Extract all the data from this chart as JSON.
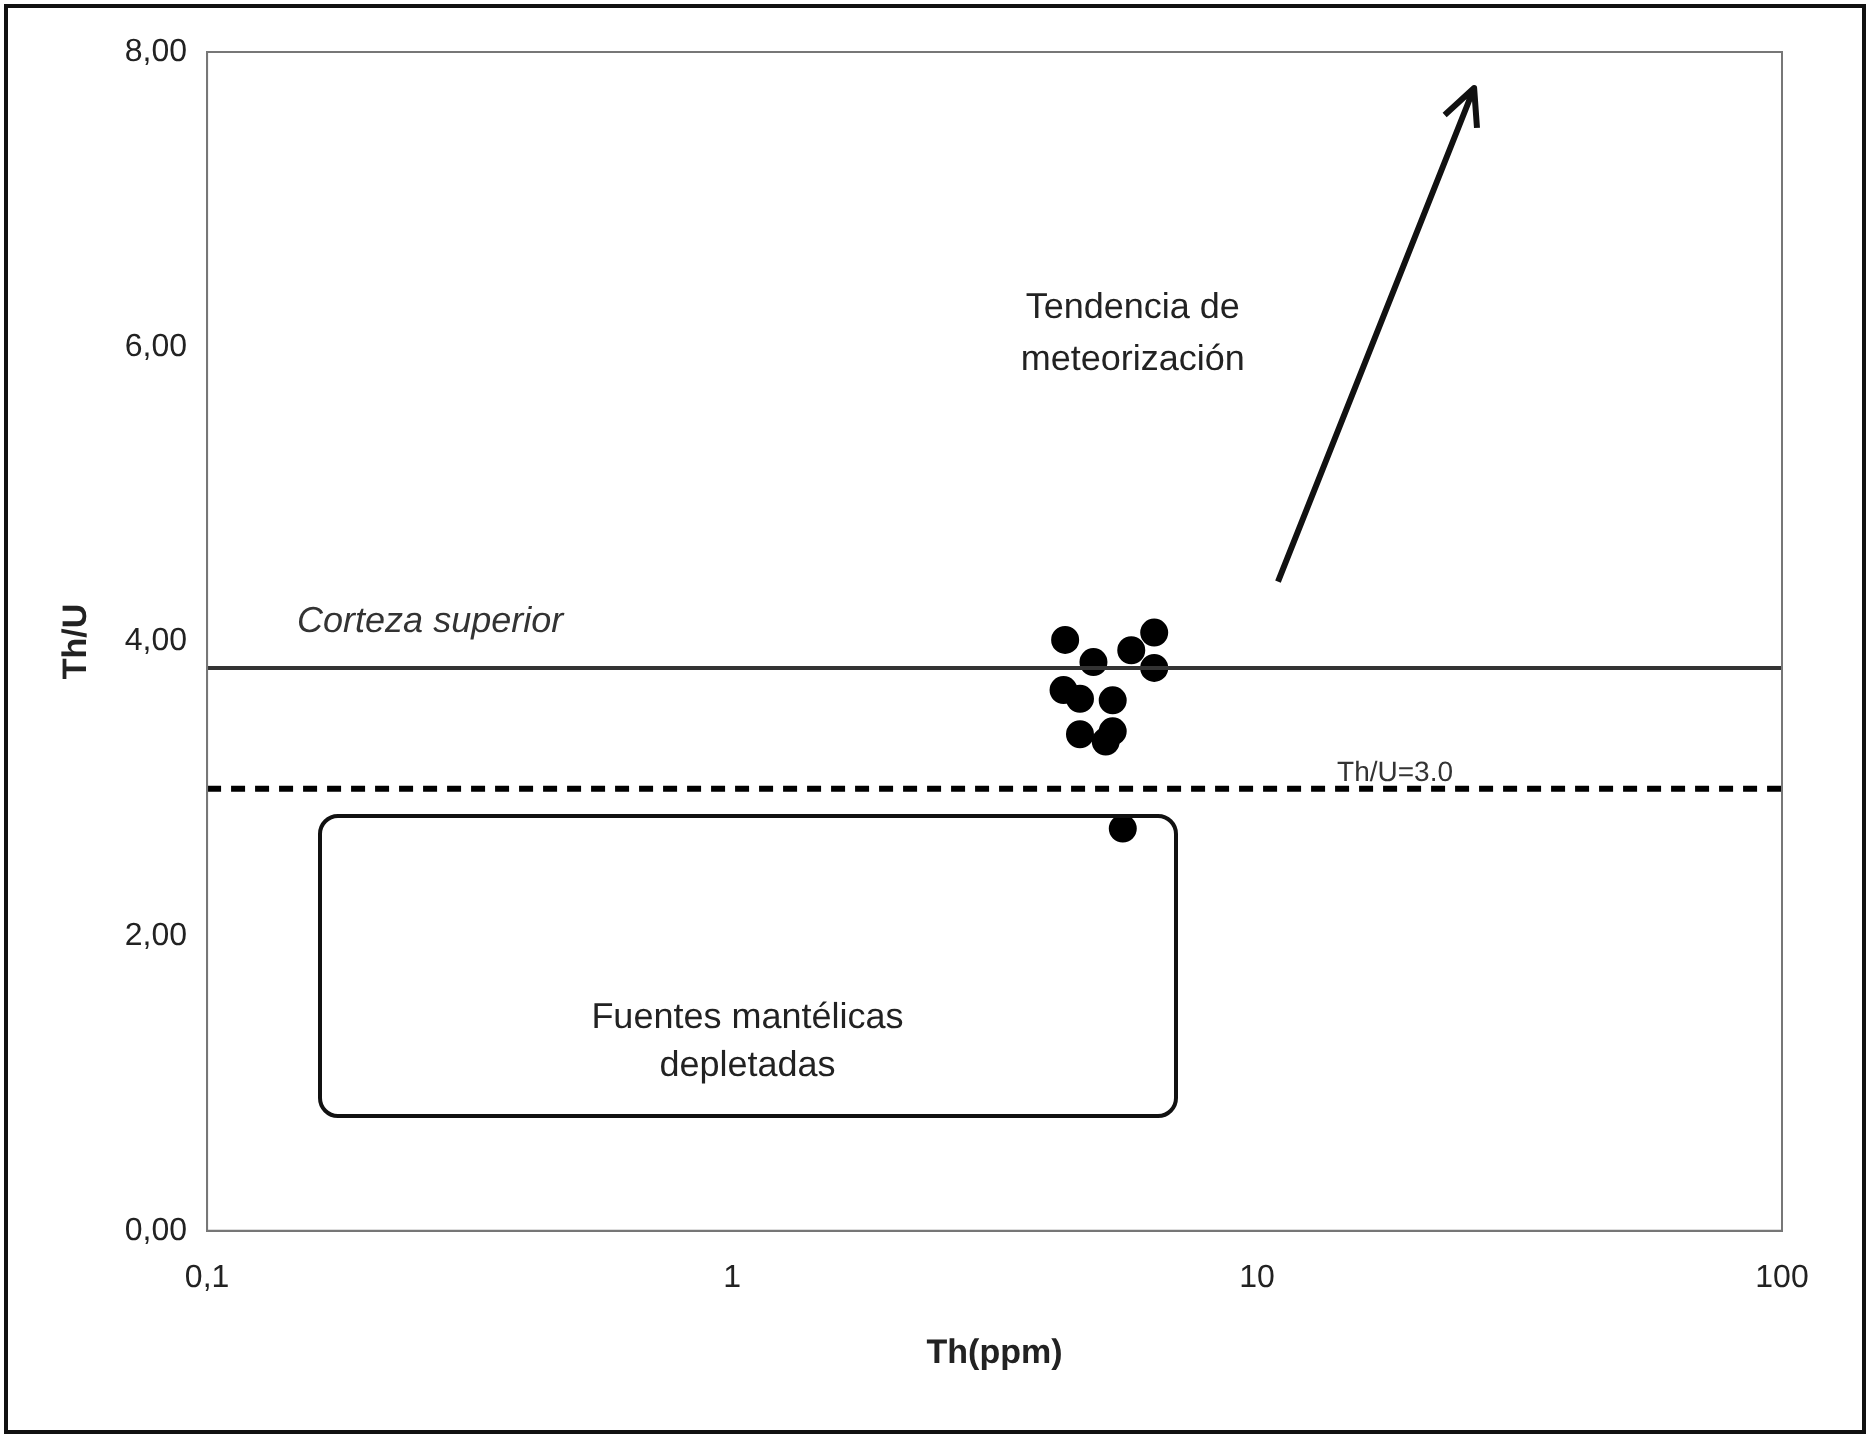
{
  "chart_data": {
    "type": "scatter",
    "xlabel": "Th(ppm)",
    "ylabel": "Th/U",
    "x": [
      4.31,
      4.88,
      5.76,
      6.37,
      6.37,
      4.28,
      4.6,
      5.31,
      4.6,
      5.15,
      5.31,
      5.55
    ],
    "series": [
      {
        "color": "#000000",
        "values": [
          4.01,
          3.86,
          3.94,
          4.06,
          3.82,
          3.67,
          3.61,
          3.6,
          3.37,
          3.32,
          3.39,
          2.73
        ]
      }
    ],
    "marker": "circle",
    "log": "x",
    "grid": false,
    "legend": false,
    "xlim": [
      0.1,
      100
    ],
    "xticks": [
      {
        "value": 0.1,
        "label": "0,1"
      },
      1,
      10,
      100
    ],
    "ylim": [
      0,
      8
    ],
    "yticks": [
      {
        "value": 0,
        "label": "0,00"
      },
      {
        "value": 2,
        "label": "2,00"
      },
      {
        "value": 4,
        "label": "4,00"
      },
      {
        "value": 6,
        "label": "6,00"
      },
      {
        "value": 8,
        "label": "8,00"
      }
    ],
    "ref_lines": [
      {
        "axis": "y",
        "value": 3.82,
        "label": "Corteza superior",
        "line_style": "solid",
        "color": "#333333"
      },
      {
        "axis": "y",
        "value": 3.0,
        "label": "Th/U=3.0",
        "line_style": "dashed",
        "color": "#000000"
      }
    ],
    "annotations": [
      "Tendencia de meteorización",
      "Fuentes mantélicas depletadas"
    ]
  }
}
